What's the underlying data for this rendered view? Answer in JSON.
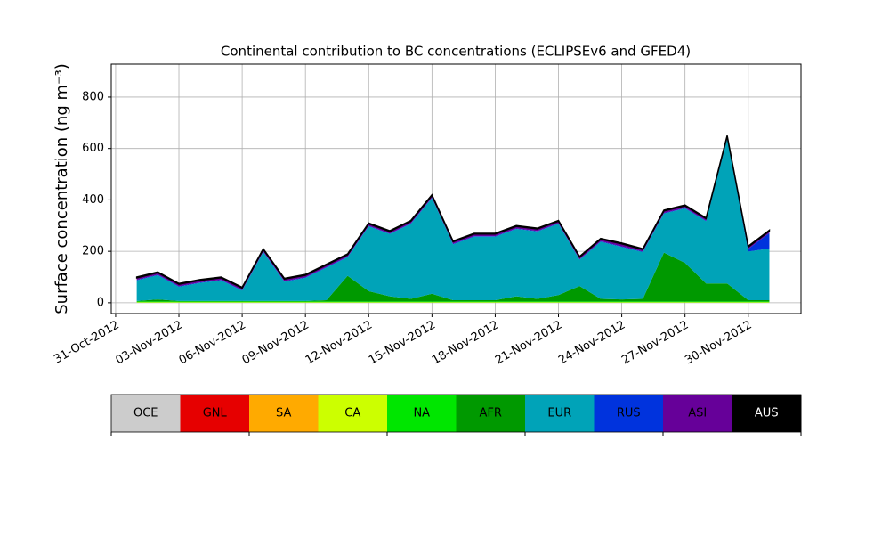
{
  "chart_data": {
    "type": "stacked_area",
    "title": "Continental contribution to BC concentrations (ECLIPSEv6 and GFED4)",
    "y_label": "Surface concentration (ng m⁻³)",
    "x": [
      "2012-11-01",
      "2012-11-02",
      "2012-11-03",
      "2012-11-04",
      "2012-11-05",
      "2012-11-06",
      "2012-11-07",
      "2012-11-08",
      "2012-11-09",
      "2012-11-10",
      "2012-11-11",
      "2012-11-12",
      "2012-11-13",
      "2012-11-14",
      "2012-11-15",
      "2012-11-16",
      "2012-11-17",
      "2012-11-18",
      "2012-11-19",
      "2012-11-20",
      "2012-11-21",
      "2012-11-22",
      "2012-11-23",
      "2012-11-24",
      "2012-11-25",
      "2012-11-26",
      "2012-11-27",
      "2012-11-28",
      "2012-11-29",
      "2012-11-30",
      "2012-12-01"
    ],
    "series": [
      {
        "name": "OCE",
        "color": "#cccccc",
        "values": [
          0,
          0,
          0,
          0,
          0,
          0,
          0,
          0,
          0,
          0,
          0,
          0,
          0,
          0,
          0,
          0,
          0,
          0,
          0,
          0,
          0,
          0,
          0,
          0,
          0,
          0,
          0,
          0,
          0,
          0,
          0
        ]
      },
      {
        "name": "GNL",
        "color": "#e60000",
        "values": [
          0,
          0,
          0,
          0,
          0,
          0,
          0,
          0,
          0,
          0,
          0,
          0,
          0,
          0,
          0,
          0,
          0,
          0,
          0,
          0,
          0,
          0,
          0,
          0,
          0,
          0,
          0,
          0,
          0,
          0,
          0
        ]
      },
      {
        "name": "SA",
        "color": "#ffaa00",
        "values": [
          0,
          0,
          0,
          0,
          0,
          0,
          0,
          0,
          0,
          0,
          0,
          0,
          0,
          0,
          0,
          0,
          0,
          0,
          0,
          0,
          0,
          0,
          0,
          0,
          0,
          0,
          0,
          0,
          0,
          0,
          0
        ]
      },
      {
        "name": "CA",
        "color": "#ccff00",
        "values": [
          2,
          2,
          2,
          2,
          2,
          2,
          2,
          2,
          2,
          2,
          2,
          2,
          2,
          2,
          2,
          2,
          2,
          2,
          2,
          2,
          2,
          2,
          2,
          2,
          2,
          2,
          2,
          2,
          2,
          2,
          2
        ]
      },
      {
        "name": "NA",
        "color": "#00e600",
        "values": [
          3,
          3,
          3,
          3,
          3,
          3,
          3,
          3,
          3,
          3,
          3,
          3,
          3,
          3,
          3,
          3,
          3,
          3,
          3,
          3,
          3,
          3,
          3,
          3,
          3,
          3,
          3,
          3,
          3,
          3,
          3
        ]
      },
      {
        "name": "AFR",
        "color": "#009900",
        "values": [
          2,
          8,
          2,
          2,
          2,
          2,
          2,
          2,
          2,
          5,
          100,
          40,
          20,
          10,
          30,
          5,
          5,
          5,
          20,
          10,
          25,
          60,
          10,
          8,
          10,
          190,
          150,
          70,
          70,
          5,
          5
        ]
      },
      {
        "name": "EUR",
        "color": "#00a3b8",
        "values": [
          80,
          94,
          55,
          70,
          80,
          40,
          190,
          75,
          90,
          127,
          72,
          252,
          242,
          292,
          372,
          217,
          247,
          247,
          262,
          262,
          277,
          102,
          222,
          204,
          182,
          152,
          212,
          242,
          562,
          189,
          201
        ]
      },
      {
        "name": "RUS",
        "color": "#0033dd",
        "values": [
          2,
          2,
          2,
          2,
          2,
          2,
          2,
          2,
          2,
          2,
          2,
          2,
          2,
          2,
          2,
          2,
          2,
          2,
          2,
          2,
          2,
          2,
          2,
          2,
          2,
          2,
          2,
          2,
          2,
          10,
          60
        ]
      },
      {
        "name": "ASI",
        "color": "#660099",
        "values": [
          8,
          8,
          8,
          8,
          8,
          8,
          8,
          8,
          8,
          8,
          8,
          8,
          8,
          8,
          8,
          8,
          8,
          8,
          8,
          8,
          8,
          8,
          8,
          10,
          8,
          8,
          8,
          8,
          8,
          8,
          8
        ]
      },
      {
        "name": "AUS",
        "color": "#000000",
        "values": [
          3,
          3,
          3,
          3,
          3,
          3,
          3,
          3,
          3,
          3,
          3,
          3,
          3,
          3,
          3,
          3,
          3,
          3,
          3,
          3,
          3,
          3,
          3,
          3,
          3,
          3,
          3,
          3,
          3,
          3,
          3
        ]
      }
    ],
    "xlim": [
      "2012-10-30T19:00:00Z",
      "2012-12-02T12:00:00Z"
    ],
    "xticks": [
      {
        "value": "2012-10-31",
        "label": "31-Oct-2012"
      },
      {
        "value": "2012-11-03",
        "label": "03-Nov-2012"
      },
      {
        "value": "2012-11-06",
        "label": "06-Nov-2012"
      },
      {
        "value": "2012-11-09",
        "label": "09-Nov-2012"
      },
      {
        "value": "2012-11-12",
        "label": "12-Nov-2012"
      },
      {
        "value": "2012-11-15",
        "label": "15-Nov-2012"
      },
      {
        "value": "2012-11-18",
        "label": "18-Nov-2012"
      },
      {
        "value": "2012-11-21",
        "label": "21-Nov-2012"
      },
      {
        "value": "2012-11-24",
        "label": "24-Nov-2012"
      },
      {
        "value": "2012-11-27",
        "label": "27-Nov-2012"
      },
      {
        "value": "2012-11-30",
        "label": "30-Nov-2012"
      }
    ],
    "ylim": [
      -42,
      928
    ],
    "yticks": [
      0,
      200,
      400,
      600,
      800
    ],
    "grid": true
  }
}
